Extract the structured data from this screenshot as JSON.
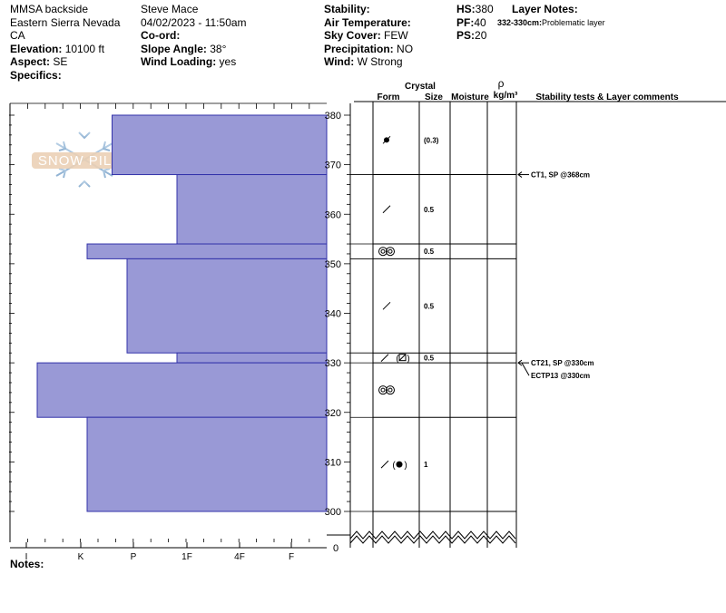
{
  "header": {
    "location": "MMSA backside",
    "range": "Eastern Sierra Nevada",
    "state": "CA",
    "elevation_label": "Elevation:",
    "elevation_value": "10100 ft",
    "aspect_label": "Aspect:",
    "aspect_value": "SE",
    "specifics_label": "Specifics:",
    "observer": "Steve Mace",
    "datetime": "04/02/2023 - 11:50am",
    "coord_label": "Co-ord:",
    "slope_label": "Slope Angle:",
    "slope_value": "38°",
    "wind_loading_label": "Wind Loading:",
    "wind_loading_value": "yes",
    "stability_label": "Stability:",
    "air_temp_label": "Air Temperature:",
    "sky_label": "Sky Cover:",
    "sky_value": "FEW",
    "precip_label": "Precipitation:",
    "precip_value": "NO",
    "wind_label": "Wind:",
    "wind_value": "W Strong",
    "hs_label": "HS:",
    "hs_value": "380",
    "pf_label": "PF:",
    "pf_value": "40",
    "ps_label": "PS:",
    "ps_value": "20",
    "layer_notes_label": "Layer Notes:",
    "layer_note": "332-330cm:",
    "layer_note_text": "Problematic layer",
    "notes_label": "Notes:"
  },
  "watermark": {
    "text": "SNOW PILOT"
  },
  "columns": {
    "crystal": "Crystal",
    "form": "Form",
    "size": "Size",
    "moisture": "Moisture",
    "rho": "ρ",
    "density_unit": "kg/m³",
    "stability": "Stability tests & Layer comments"
  },
  "colors": {
    "bar_fill": "#9999d6",
    "bar_stroke": "#3333aa"
  },
  "chart_data": {
    "type": "bar",
    "orientation": "horizontal",
    "ylim": [
      300,
      380
    ],
    "yticks": [
      300,
      310,
      320,
      330,
      340,
      350,
      360,
      370,
      380
    ],
    "y_zero_label": "0",
    "hardness_scale": [
      "I",
      "K",
      "P",
      "1F",
      "4F",
      "F"
    ],
    "layers": [
      {
        "top": 380,
        "bottom": 368,
        "hardness": "4F-",
        "hardness_index": 4.3
      },
      {
        "top": 368,
        "bottom": 354,
        "hardness": "F",
        "hardness_index": 3
      },
      {
        "top": 354,
        "bottom": 351,
        "hardness": "P-",
        "hardness_index": 4.8
      },
      {
        "top": 351,
        "bottom": 332,
        "hardness": "1F",
        "hardness_index": 4
      },
      {
        "top": 332,
        "bottom": 330,
        "hardness": "F",
        "hardness_index": 3
      },
      {
        "top": 330,
        "bottom": 319,
        "hardness": "K",
        "hardness_index": 5.8
      },
      {
        "top": 319,
        "bottom": 300,
        "hardness": "P",
        "hardness_index": 4.8
      }
    ],
    "crystals": [
      {
        "depth": 375,
        "form": "rounded-faceted",
        "size": "(0.3)"
      },
      {
        "depth": 361,
        "form": "decomposing",
        "size": "0.5"
      },
      {
        "depth": 352.5,
        "form": "melt-freeze",
        "size": "0.5"
      },
      {
        "depth": 341.5,
        "form": "decomposing",
        "size": "0.5"
      },
      {
        "depth": 331,
        "form": "decomposing-faceted",
        "size": "0.5"
      },
      {
        "depth": 324.5,
        "form": "melt-freeze",
        "size": ""
      },
      {
        "depth": 309.5,
        "form": "decomposing-rounded",
        "size": "1"
      }
    ],
    "stability_tests": [
      {
        "depth": 368,
        "label": "CT1, SP @368cm"
      },
      {
        "depth": 330,
        "label": "CT21, SP @330cm"
      },
      {
        "depth": 330,
        "label": "ECTP13 @330cm"
      }
    ]
  }
}
